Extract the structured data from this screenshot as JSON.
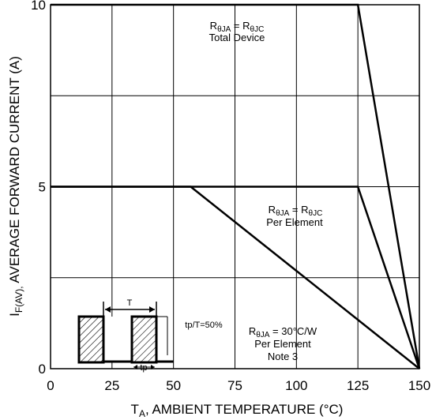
{
  "chart_data": {
    "type": "line",
    "xlabel": {
      "main": "T",
      "sub": "A",
      "rest": ", AMBIENT TEMPERATURE (°C)"
    },
    "ylabel": {
      "main": "I",
      "sub": "F(AV),",
      "rest": " AVERAGE FORWARD CURRENT (A)"
    },
    "xlim": [
      0,
      150
    ],
    "ylim": [
      0,
      10
    ],
    "x_ticks": [
      "0",
      "25",
      "50",
      "75",
      "100",
      "125",
      "150"
    ],
    "y_ticks": [
      "0",
      "5",
      "10"
    ],
    "grid": true,
    "series": [
      {
        "x": [
          0,
          125,
          150
        ],
        "y": [
          10,
          10,
          0
        ]
      },
      {
        "x": [
          0,
          125,
          150
        ],
        "y": [
          5,
          5,
          0
        ]
      },
      {
        "x": [
          0,
          57,
          150
        ],
        "y": [
          5,
          5,
          0
        ]
      }
    ],
    "annotations": {
      "total": {
        "line1": {
          "r1": "R",
          "s1": "θJA",
          "mid": " = R",
          "s2": "θJC"
        },
        "line2": "Total Device"
      },
      "per": {
        "line1": {
          "r1": "R",
          "s1": "θJA",
          "mid": " = R",
          "s2": "θJC"
        },
        "line2": "Per Element"
      },
      "note": {
        "line1": {
          "r1": "R",
          "s1": "θJA",
          "rest": " = 30°C/W"
        },
        "line2": "Per Element",
        "line3": "Note 3"
      }
    },
    "inset": {
      "period_label": "T",
      "pulse_label": "tp",
      "duty_label": "tp/T=50%"
    }
  }
}
